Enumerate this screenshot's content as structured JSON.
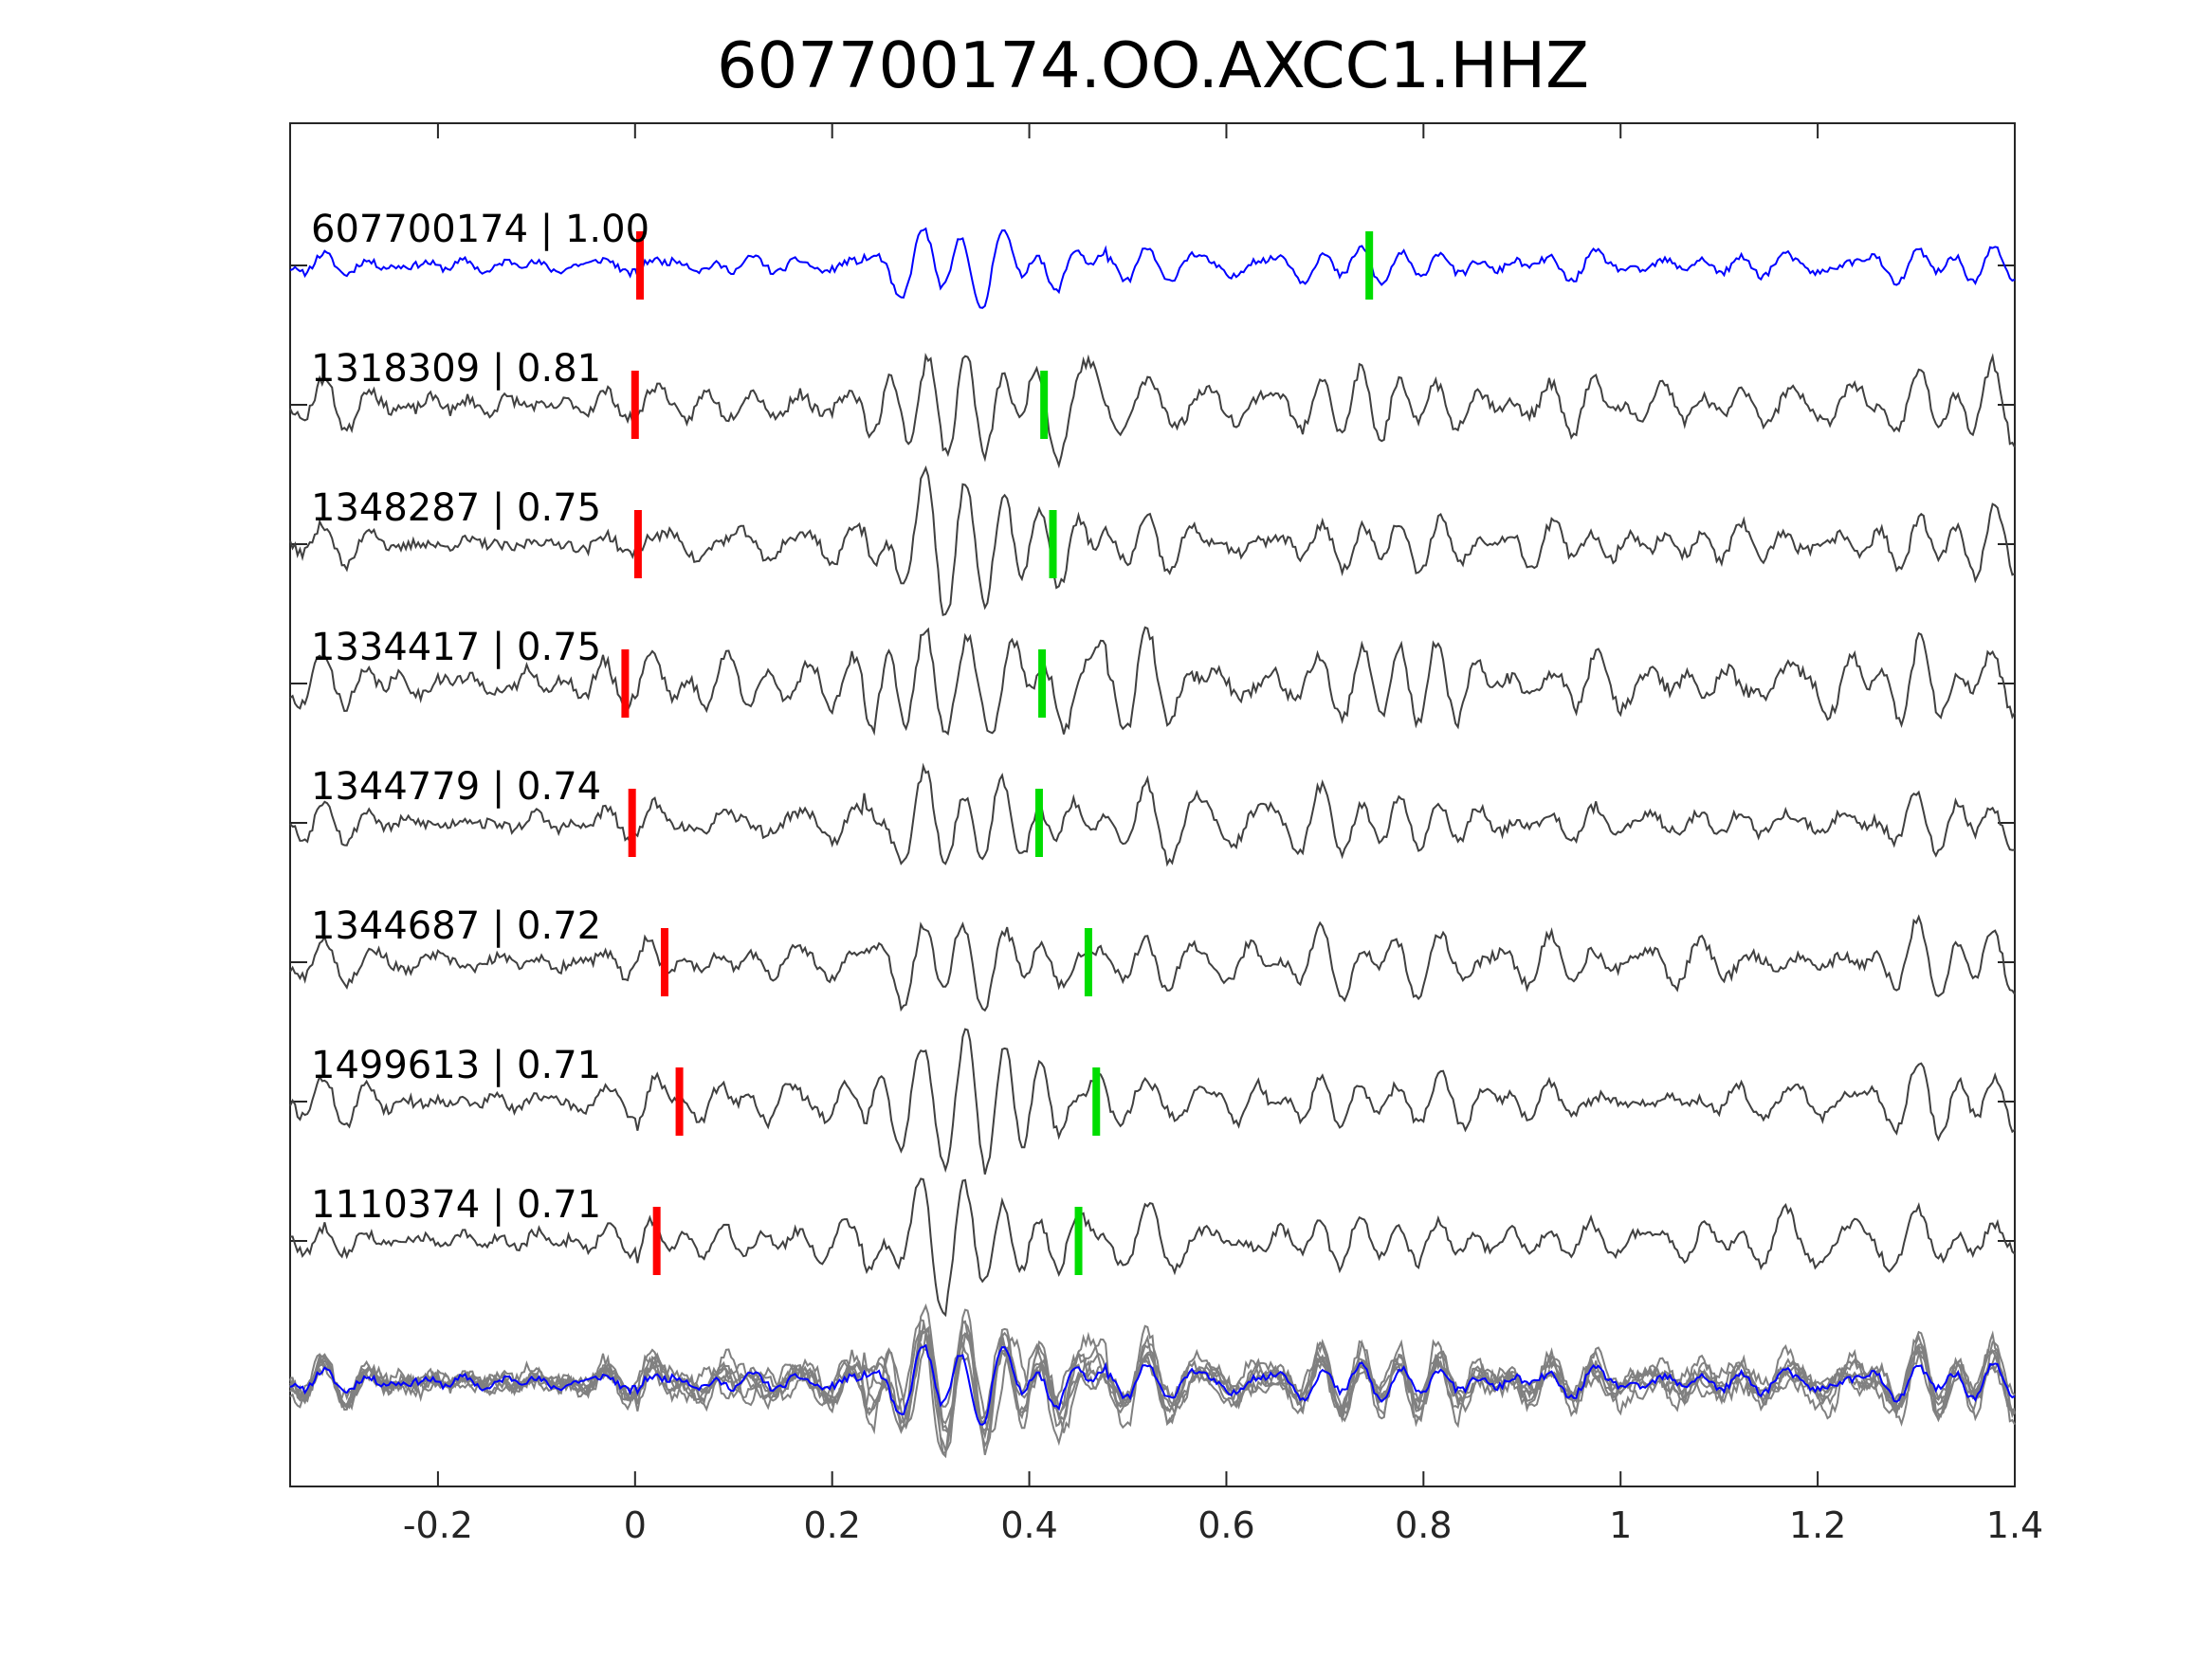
{
  "chart_data": {
    "type": "line",
    "title": "607700174.OO.AXCC1.HHZ",
    "xlabel": "",
    "ylabel": "",
    "xlim": [
      -0.35,
      1.4
    ],
    "xticks": [
      -0.2,
      0,
      0.2,
      0.4,
      0.6,
      0.8,
      1,
      1.2,
      1.4
    ],
    "xtick_labels": [
      "-0.2",
      "0",
      "0.2",
      "0.4",
      "0.6",
      "0.8",
      "1",
      "1.2",
      "1.4"
    ],
    "grid": false,
    "colors": {
      "template": "#0000ff",
      "match": "#404040",
      "overlay": "#808080",
      "p_pick": "#ff0000",
      "s_pick": "#00dd00",
      "axes": "#262626"
    },
    "series": [
      {
        "id": "607700174",
        "cc": "1.00",
        "label": "607700174 | 1.00",
        "p_pick": 0.005,
        "s_pick": 0.745,
        "seed": 11,
        "amp": 0.55
      },
      {
        "id": "1318309",
        "cc": "0.81",
        "label": "1318309 | 0.81",
        "p_pick": 0.0,
        "s_pick": 0.415,
        "seed": 23,
        "amp": 0.9
      },
      {
        "id": "1348287",
        "cc": "0.75",
        "label": "1348287 | 0.75",
        "p_pick": 0.003,
        "s_pick": 0.424,
        "seed": 37,
        "amp": 0.85
      },
      {
        "id": "1334417",
        "cc": "0.75",
        "label": "1334417 | 0.75",
        "p_pick": -0.01,
        "s_pick": 0.413,
        "seed": 41,
        "amp": 1.0
      },
      {
        "id": "1344779",
        "cc": "0.74",
        "label": "1344779 | 0.74",
        "p_pick": -0.003,
        "s_pick": 0.41,
        "seed": 53,
        "amp": 0.85
      },
      {
        "id": "1344687",
        "cc": "0.72",
        "label": "1344687 | 0.72",
        "p_pick": 0.03,
        "s_pick": 0.46,
        "seed": 67,
        "amp": 0.8
      },
      {
        "id": "1499613",
        "cc": "0.71",
        "label": "1499613 | 0.71",
        "p_pick": 0.045,
        "s_pick": 0.468,
        "seed": 71,
        "amp": 0.8
      },
      {
        "id": "1110374",
        "cc": "0.71",
        "label": "1110374 | 0.71",
        "p_pick": 0.022,
        "s_pick": 0.45,
        "seed": 83,
        "amp": 0.8
      }
    ],
    "overlay": {
      "name": "stack"
    }
  }
}
